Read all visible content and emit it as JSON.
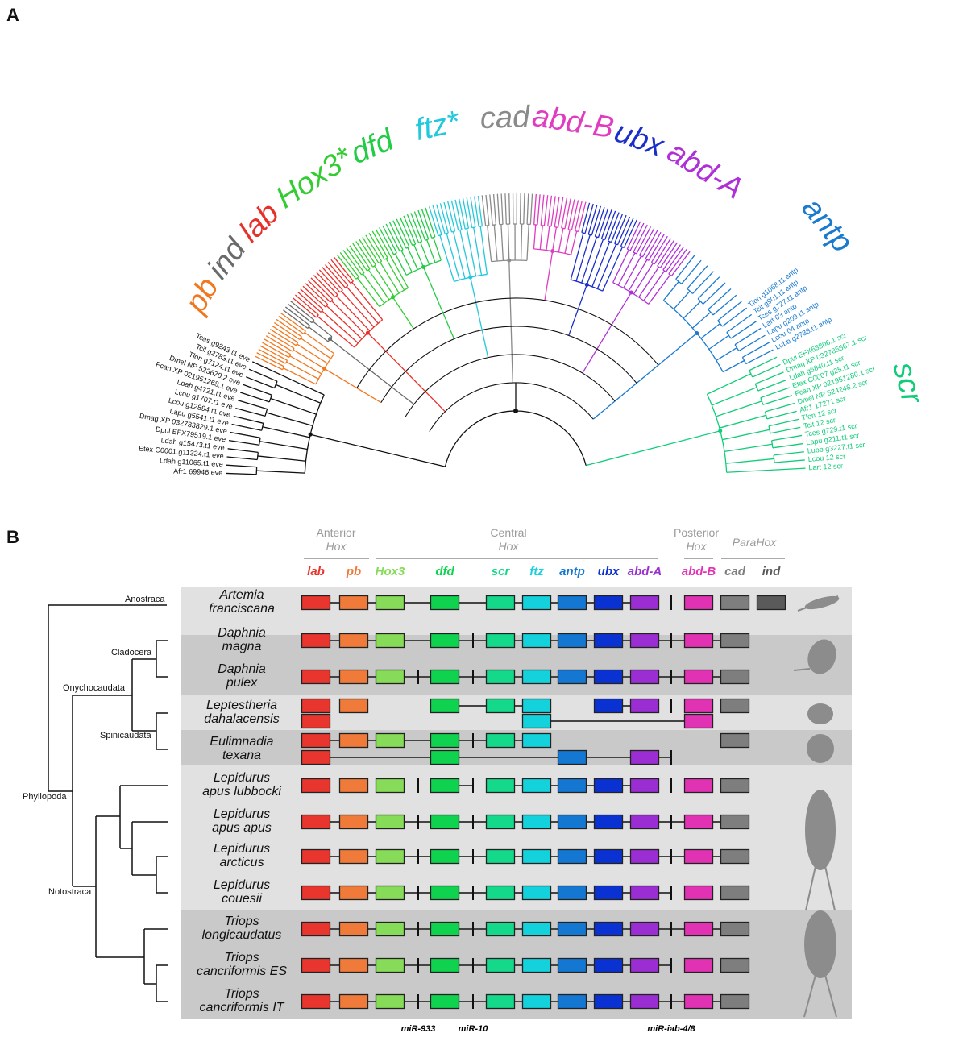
{
  "panel_a": {
    "letter": "A",
    "clades": [
      {
        "key": "eve",
        "label": "",
        "color": "#111111"
      },
      {
        "key": "pb",
        "label": "pb",
        "color": "#f07820"
      },
      {
        "key": "ind",
        "label": "ind",
        "color": "#6a6a6a"
      },
      {
        "key": "lab",
        "label": "lab",
        "color": "#e8302a"
      },
      {
        "key": "hox3",
        "label": "Hox3*",
        "color": "#33cc33"
      },
      {
        "key": "dfd",
        "label": "dfd",
        "color": "#22cc44"
      },
      {
        "key": "ftz",
        "label": "ftz*",
        "color": "#22c8dc"
      },
      {
        "key": "cad",
        "label": "cad",
        "color": "#8a8a8a"
      },
      {
        "key": "abdb",
        "label": "abd-B",
        "color": "#e03cc0"
      },
      {
        "key": "ubx",
        "label": "ubx",
        "color": "#1a2ec8"
      },
      {
        "key": "abda",
        "label": "abd-A",
        "color": "#b030d8"
      },
      {
        "key": "antp",
        "label": "antp",
        "color": "#1a7ad0"
      },
      {
        "key": "scr",
        "label": "scr",
        "color": "#10cc78"
      }
    ],
    "eve_leaves": [
      "Tcas g9243.t1 eve",
      "Tcil g2783.t1 eve",
      "Tlon g7124.t1 eve",
      "Dmel NP 523670.2 eve",
      "Fcan XP 021951268.1 eve",
      "Ldah g4721.t1 eve",
      "Lcou g1707.t1 eve",
      "Lcou g12894.t1 eve",
      "Lapu g5541.t1 eve",
      "Dmag XP 032783829.1 eve",
      "Dpul EFX79519.1 eve",
      "Ldah g15473.t1 eve",
      "Etex C0001.g11324.t1 eve",
      "Ldah g11065.t1 eve",
      "Afr1 69946 eve"
    ],
    "scr_leaves": [
      "Lart 12 scr",
      "Lcou 12 scr",
      "Lubb g3227.t1 scr",
      "Lapu g211.t1 scr",
      "Tces g729.t1 scr",
      "Tcit 12 scr",
      "Tlon 12 scr",
      "Afr1 17271 scr",
      "Dmel NP 524248.2 scr",
      "Fcan XP 021951280.1 scr",
      "Etex C0007.g25.t1 scr",
      "Ldah g6840.t1 scr",
      "Dmag XP 032785567.1 scr",
      "Dpul EFX68806.1 scr"
    ],
    "antp_leaves": [
      "Lubb g2738.t1 antp",
      "Lcou 04 antp",
      "Lapu g209.t1 antp",
      "Lart 03 antp",
      "Tces g727.t1 antp",
      "Tcit g901.t1 antp",
      "Tlon g1068.t1 antp"
    ]
  },
  "panel_b": {
    "letter": "B",
    "groups": [
      {
        "line1": "Anterior",
        "line2": "Hox"
      },
      {
        "line1": "Central",
        "line2": "Hox"
      },
      {
        "line1": "Posterior",
        "line2": "Hox"
      },
      {
        "line1": "ParaHox",
        "line2": ""
      }
    ],
    "genes": [
      {
        "label": "lab",
        "color": "#e8352e"
      },
      {
        "label": "pb",
        "color": "#ef7a3a"
      },
      {
        "label": "Hox3",
        "color": "#86dc58"
      },
      {
        "label": "dfd",
        "color": "#0fd24e"
      },
      {
        "label": "scr",
        "color": "#14d88a"
      },
      {
        "label": "ftz",
        "color": "#14d2dc"
      },
      {
        "label": "antp",
        "color": "#1478d2"
      },
      {
        "label": "ubx",
        "color": "#0a32d2"
      },
      {
        "label": "abd-A",
        "color": "#9a2ed2"
      },
      {
        "label": "abd-B",
        "color": "#e232b4"
      },
      {
        "label": "cad",
        "color": "#7e7e7e"
      },
      {
        "label": "ind",
        "color": "#5a5a5a"
      }
    ],
    "mirnas": [
      "miR-933",
      "miR-10",
      "miR-iab-4/8"
    ],
    "tree_labels": {
      "anostraca": "Anostraca",
      "cladocera": "Cladocera",
      "onychocaudata": "Onychocaudata",
      "spinicaudata": "Spinicaudata",
      "phyllopoda": "Phyllopoda",
      "notostraca": "Notostraca"
    },
    "species": [
      {
        "line1": "Artemia",
        "line2": "franciscana",
        "tracks": [
          {
            "slots": [
              0,
              1,
              2,
              4,
              6,
              7,
              8,
              9,
              10,
              11,
              12,
              13,
              14
            ],
            "links": [
              [
                0,
                10
              ]
            ]
          }
        ]
      },
      {
        "line1": "Daphnia",
        "line2": "magna",
        "tracks": [
          {
            "slots": [
              0,
              1,
              2,
              4,
              5,
              6,
              7,
              8,
              9,
              10,
              11,
              12,
              13
            ],
            "links": [
              [
                0,
                13
              ]
            ]
          }
        ]
      },
      {
        "line1": "Daphnia",
        "line2": "pulex",
        "tracks": [
          {
            "slots": [
              0,
              1,
              2,
              3,
              4,
              5,
              6,
              7,
              8,
              9,
              10,
              11,
              12,
              13
            ],
            "links": [
              [
                0,
                13
              ]
            ]
          }
        ]
      },
      {
        "line1": "Leptestheria",
        "line2": "dahalacensis",
        "tracks": [
          {
            "slots": [
              0,
              1,
              4,
              6,
              7,
              9,
              10,
              11,
              12,
              13
            ],
            "links": [
              [
                4,
                7
              ],
              [
                9,
                10
              ]
            ]
          },
          {
            "slots": [
              0,
              7,
              12
            ],
            "links": [
              [
                7,
                12
              ]
            ]
          }
        ]
      },
      {
        "line1": "Eulimnadia",
        "line2": "texana",
        "tracks": [
          {
            "slots": [
              0,
              1,
              2,
              4,
              5,
              6,
              7,
              13
            ],
            "links": [
              [
                0,
                7
              ]
            ]
          },
          {
            "slots": [
              0,
              4,
              8,
              10,
              11
            ],
            "links": [
              [
                0,
                11
              ]
            ]
          }
        ]
      },
      {
        "line1": "Lepidurus",
        "line2": "apus lubbocki",
        "tracks": [
          {
            "slots": [
              0,
              1,
              2,
              3,
              4,
              5,
              6,
              7,
              8,
              9,
              10,
              11,
              12,
              13
            ],
            "links": [
              [
                4,
                5
              ],
              [
                6,
                10
              ]
            ]
          }
        ]
      },
      {
        "line1": "Lepidurus",
        "line2": "apus apus",
        "tracks": [
          {
            "slots": [
              0,
              1,
              2,
              3,
              4,
              5,
              6,
              7,
              8,
              9,
              10,
              11,
              12,
              13
            ],
            "links": [
              [
                0,
                13
              ]
            ]
          }
        ]
      },
      {
        "line1": "Lepidurus",
        "line2": "arcticus",
        "tracks": [
          {
            "slots": [
              0,
              1,
              2,
              3,
              4,
              5,
              6,
              7,
              8,
              9,
              10,
              11,
              12,
              13
            ],
            "links": [
              [
                0,
                13
              ]
            ]
          }
        ]
      },
      {
        "line1": "Lepidurus",
        "line2": "couesii",
        "tracks": [
          {
            "slots": [
              0,
              1,
              2,
              3,
              4,
              5,
              6,
              7,
              8,
              9,
              10,
              11,
              12,
              13
            ],
            "links": [
              [
                0,
                11
              ]
            ]
          }
        ]
      },
      {
        "line1": "Triops",
        "line2": "longicaudatus",
        "tracks": [
          {
            "slots": [
              0,
              1,
              2,
              3,
              4,
              5,
              6,
              7,
              8,
              9,
              10,
              11,
              12,
              13
            ],
            "links": [
              [
                0,
                13
              ]
            ]
          }
        ]
      },
      {
        "line1": "Triops",
        "line2": "cancriformis ES",
        "tracks": [
          {
            "slots": [
              0,
              1,
              2,
              3,
              4,
              5,
              6,
              7,
              8,
              9,
              10,
              11,
              12,
              13
            ],
            "links": [
              [
                0,
                11
              ]
            ]
          }
        ]
      },
      {
        "line1": "Triops",
        "line2": "cancriformis IT",
        "tracks": [
          {
            "slots": [
              0,
              1,
              2,
              3,
              4,
              5,
              6,
              7,
              8,
              9,
              10,
              11,
              12,
              13
            ],
            "links": [
              [
                0,
                13
              ]
            ]
          }
        ]
      }
    ]
  }
}
